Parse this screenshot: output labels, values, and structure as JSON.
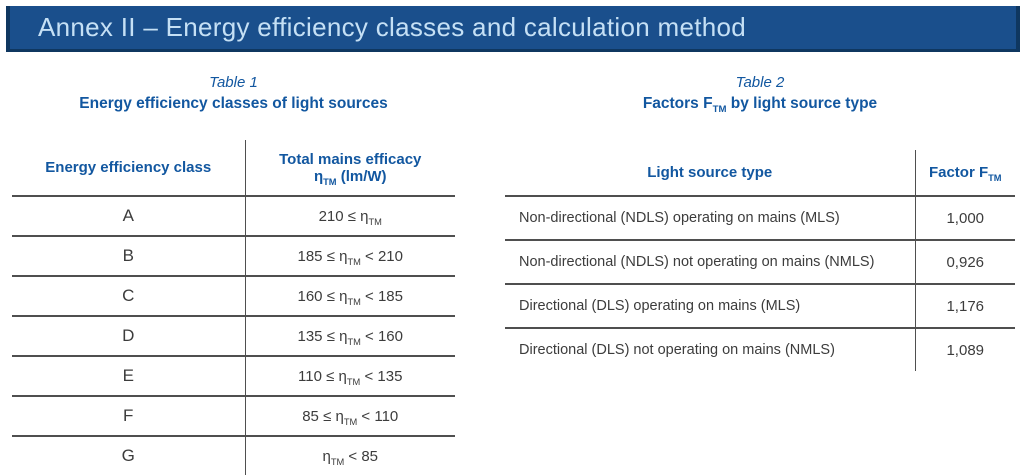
{
  "header": {
    "title": "Annex II – Energy efficiency classes and calculation method"
  },
  "colors": {
    "title_bar_bg": "#1a4f8c",
    "title_bar_edge": "#0f3760",
    "title_text": "#c5e0f5",
    "heading_blue": "#1257a0",
    "body_text": "#3c3c3c",
    "line_gray": "#4f4f4f"
  },
  "table1": {
    "caption_label": "Table 1",
    "caption_title": "Energy efficiency classes of light sources",
    "col1_header": "Energy efficiency class",
    "col2_header_line1": "Total mains efficacy",
    "col2_header_symbol": "η",
    "col2_header_sub": "TM",
    "col2_header_after": " (lm/W)",
    "rows": [
      {
        "class": "A",
        "before": "210 ≤ η",
        "sub": "TM",
        "after": ""
      },
      {
        "class": "B",
        "before": "185 ≤ η",
        "sub": "TM",
        "after": " < 210"
      },
      {
        "class": "C",
        "before": "160 ≤ η",
        "sub": "TM",
        "after": " < 185"
      },
      {
        "class": "D",
        "before": "135 ≤ η",
        "sub": "TM",
        "after": " < 160"
      },
      {
        "class": "E",
        "before": "110 ≤ η",
        "sub": "TM",
        "after": " < 135"
      },
      {
        "class": "F",
        "before": "85 ≤ η",
        "sub": "TM",
        "after": " < 110"
      },
      {
        "class": "G",
        "before": "η",
        "sub": "TM",
        "after": " < 85"
      }
    ]
  },
  "table2": {
    "caption_label": "Table 2",
    "caption_title_before": "Factors F",
    "caption_title_sub": "TM",
    "caption_title_after": " by light source type",
    "col1_header": "Light source type",
    "col2_header_before": "Factor F",
    "col2_header_sub": "TM",
    "rows": [
      {
        "type": "Non-directional (NDLS) operating on mains (MLS)",
        "factor": "1,000"
      },
      {
        "type": "Non-directional (NDLS) not operating on mains (NMLS)",
        "factor": "0,926"
      },
      {
        "type": "Directional (DLS) operating on mains (MLS)",
        "factor": "1,176"
      },
      {
        "type": "Directional (DLS) not operating on mains (NMLS)",
        "factor": "1,089"
      }
    ]
  }
}
